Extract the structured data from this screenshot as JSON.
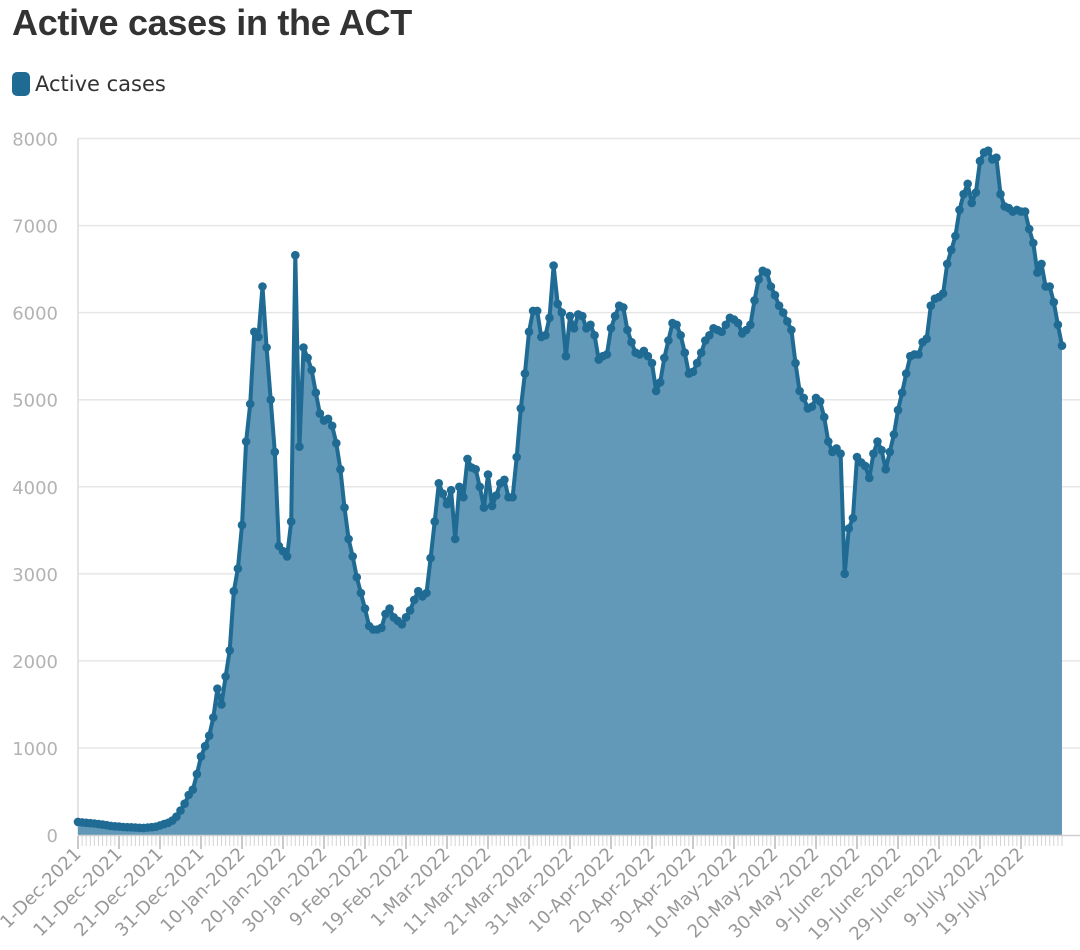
{
  "chart_data": {
    "type": "area",
    "title": "Active cases in the ACT",
    "legend": {
      "position": "top-left",
      "entries": [
        "Active cases"
      ]
    },
    "series": [
      {
        "name": "Active cases",
        "color": "#1f6b94",
        "fill": "#6298b8",
        "start_date": "2021-12-01",
        "values": [
          150,
          145,
          140,
          135,
          132,
          125,
          120,
          112,
          105,
          100,
          96,
          92,
          90,
          88,
          85,
          83,
          82,
          85,
          90,
          95,
          110,
          125,
          140,
          165,
          210,
          280,
          360,
          460,
          520,
          700,
          900,
          1020,
          1140,
          1350,
          1680,
          1500,
          1820,
          2120,
          2800,
          3060,
          3560,
          4520,
          4950,
          5780,
          5720,
          6300,
          5600,
          5000,
          4400,
          3320,
          3260,
          3200,
          3600,
          6660,
          4460,
          5600,
          5480,
          5340,
          5080,
          4840,
          4760,
          4780,
          4700,
          4500,
          4200,
          3760,
          3400,
          3200,
          2960,
          2780,
          2600,
          2400,
          2360,
          2360,
          2380,
          2540,
          2600,
          2500,
          2460,
          2420,
          2500,
          2580,
          2700,
          2800,
          2740,
          2780,
          3180,
          3600,
          4040,
          3920,
          3800,
          3960,
          3400,
          4000,
          3880,
          4320,
          4220,
          4200,
          4000,
          3760,
          4140,
          3780,
          3900,
          4040,
          4080,
          3880,
          3880,
          4340,
          4900,
          5300,
          5780,
          6020,
          6020,
          5720,
          5740,
          5940,
          6540,
          6100,
          6000,
          5500,
          5960,
          5820,
          5980,
          5960,
          5820,
          5860,
          5740,
          5460,
          5500,
          5520,
          5820,
          5960,
          6080,
          6060,
          5800,
          5660,
          5540,
          5520,
          5560,
          5500,
          5420,
          5100,
          5200,
          5480,
          5680,
          5880,
          5860,
          5740,
          5540,
          5300,
          5320,
          5420,
          5540,
          5680,
          5740,
          5820,
          5800,
          5780,
          5860,
          5940,
          5920,
          5880,
          5760,
          5800,
          5860,
          6140,
          6380,
          6480,
          6460,
          6300,
          6200,
          6080,
          6000,
          5900,
          5800,
          5420,
          5100,
          5020,
          4900,
          4920,
          5020,
          4980,
          4800,
          4520,
          4400,
          4440,
          4380,
          3000,
          3520,
          3640,
          4340,
          4280,
          4240,
          4100,
          4380,
          4520,
          4420,
          4200,
          4400,
          4600,
          4880,
          5080,
          5300,
          5500,
          5520,
          5520,
          5660,
          5700,
          6080,
          6160,
          6180,
          6220,
          6560,
          6720,
          6880,
          7180,
          7360,
          7480,
          7260,
          7380,
          7740,
          7840,
          7860,
          7760,
          7780,
          7360,
          7220,
          7200,
          7160,
          7180,
          7160,
          7160,
          6960,
          6800,
          6460,
          6560,
          6300,
          6300,
          6120,
          5860,
          5620
        ]
      }
    ],
    "ylim": [
      0,
      8000
    ],
    "yticks": [
      0,
      1000,
      2000,
      3000,
      4000,
      5000,
      6000,
      7000,
      8000
    ],
    "xticks": [
      "1-Dec-2021",
      "11-Dec-2021",
      "21-Dec-2021",
      "31-Dec-2021",
      "10-Jan-2022",
      "20-Jan-2022",
      "30-Jan-2022",
      "9-Feb-2022",
      "19-Feb-2022",
      "1-Mar-2022",
      "11-Mar-2022",
      "21-Mar-2022",
      "31-Mar-2022",
      "10-Apr-2022",
      "20-Apr-2022",
      "30-Apr-2022",
      "10-May-2022",
      "20-May-2022",
      "30-May-2022",
      "9-June-2022",
      "19-June-2022",
      "29-June-2022",
      "9-July-2022",
      "19-July-2022"
    ],
    "grid": true,
    "xlabel": "",
    "ylabel": ""
  }
}
